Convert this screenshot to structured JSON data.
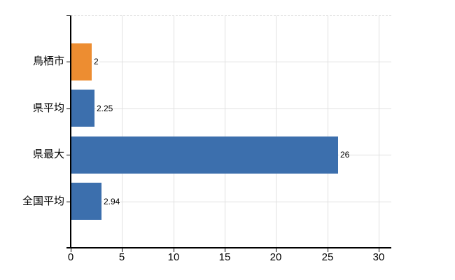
{
  "chart_data": {
    "type": "bar",
    "orientation": "horizontal",
    "title": "",
    "categories": [
      "鳥栖市",
      "県平均",
      "県最大",
      "全国平均"
    ],
    "values": [
      2,
      2.25,
      26,
      2.94
    ],
    "value_labels": [
      "2",
      "2.25",
      "26",
      "2.94"
    ],
    "series_colors": [
      "#ED8D31",
      "#3C6FAD",
      "#3C6FAD",
      "#3C6FAD"
    ],
    "xticks": [
      "0",
      "5",
      "10",
      "15",
      "20",
      "25",
      "30"
    ],
    "xlim": [
      0,
      31.2
    ],
    "grid": true,
    "legend_position": "none",
    "colors": {
      "background": "#ffffff",
      "axis": "#000000",
      "gridline": "#e0e0e0",
      "top_border": "#d9d9d9",
      "text": "#000000"
    }
  }
}
